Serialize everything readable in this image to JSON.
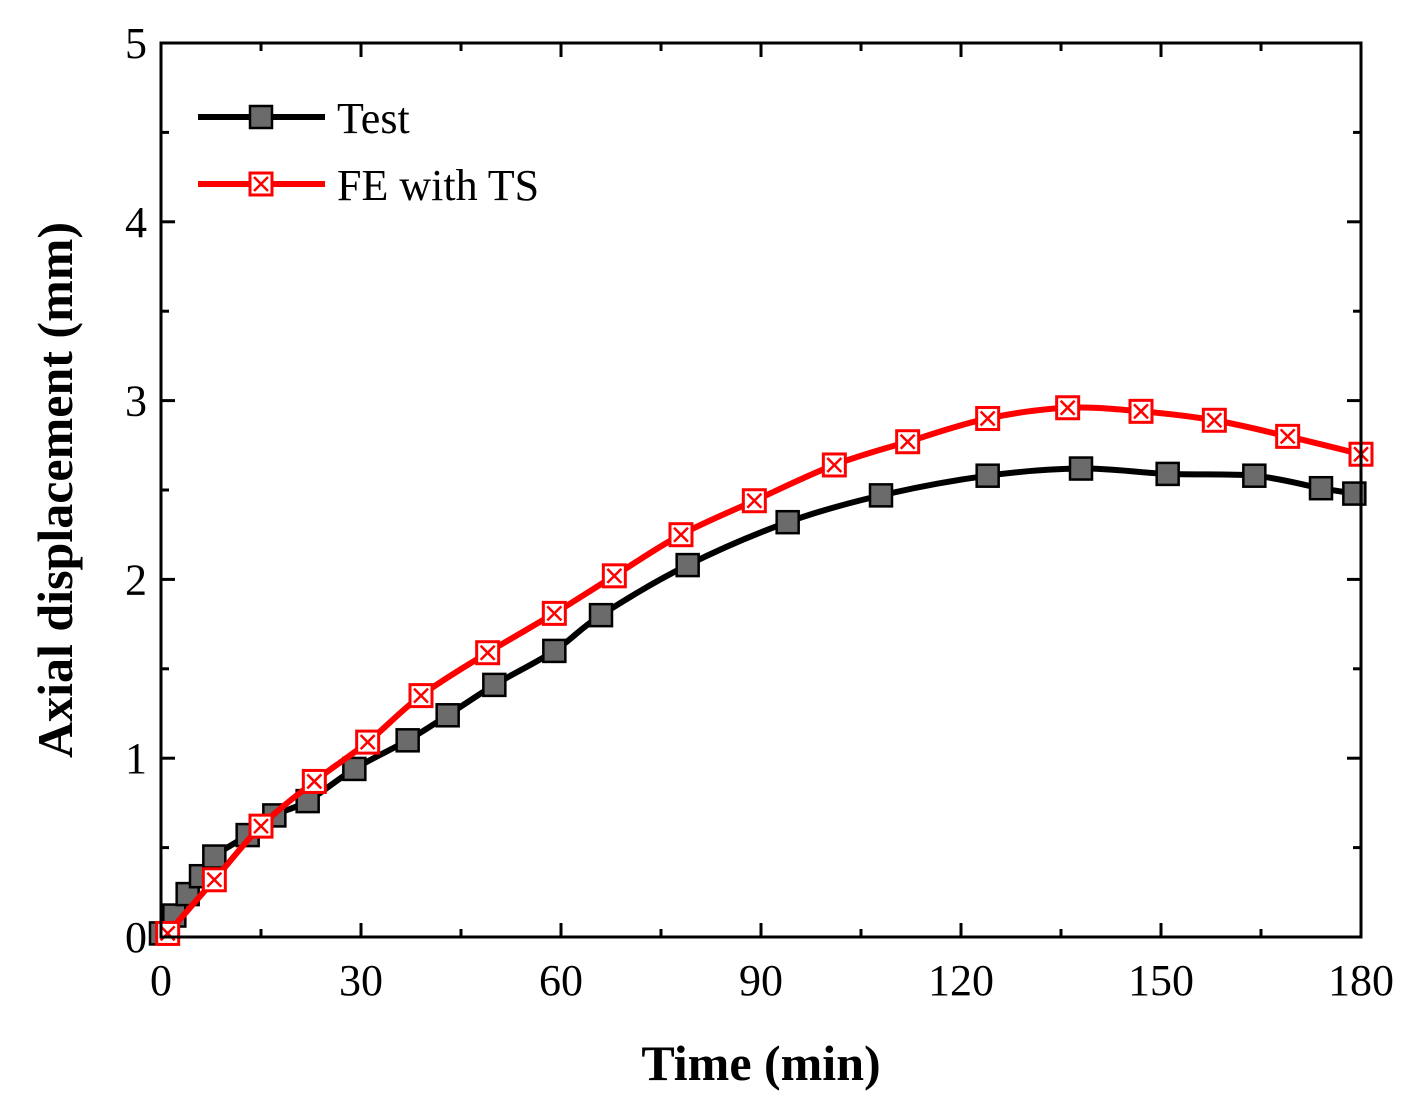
{
  "chart_data": {
    "type": "line",
    "title": "",
    "xlabel": "Time (min)",
    "ylabel": "Axial displacement (mm)",
    "xlim": [
      0,
      180
    ],
    "ylim": [
      0,
      5
    ],
    "xticks": [
      0,
      30,
      60,
      90,
      120,
      150,
      180
    ],
    "yticks": [
      0,
      1,
      2,
      3,
      4,
      5
    ],
    "grid": false,
    "legend_position": "top-left",
    "series": [
      {
        "name": "Test",
        "color": "#000000",
        "marker": "filled-square",
        "marker_fill": "#6b6b6b",
        "x": [
          0,
          2,
          4,
          6,
          8,
          13,
          17,
          22,
          29,
          37,
          43,
          50,
          59,
          66,
          79,
          94,
          108,
          124,
          138,
          151,
          164,
          174,
          179
        ],
        "y": [
          0.02,
          0.12,
          0.24,
          0.34,
          0.45,
          0.57,
          0.68,
          0.76,
          0.94,
          1.1,
          1.24,
          1.41,
          1.6,
          1.8,
          2.08,
          2.32,
          2.47,
          2.58,
          2.62,
          2.59,
          2.58,
          2.51,
          2.48
        ]
      },
      {
        "name": "FE with TS",
        "color": "#ff0000",
        "marker": "crossed-square",
        "marker_fill": "#ffffff",
        "x": [
          1,
          8,
          15,
          23,
          31,
          39,
          49,
          59,
          68,
          78,
          89,
          101,
          112,
          124,
          136,
          147,
          158,
          169,
          180
        ],
        "y": [
          0.02,
          0.32,
          0.62,
          0.87,
          1.09,
          1.35,
          1.59,
          1.81,
          2.02,
          2.25,
          2.44,
          2.64,
          2.77,
          2.9,
          2.96,
          2.94,
          2.89,
          2.8,
          2.7
        ]
      }
    ]
  }
}
